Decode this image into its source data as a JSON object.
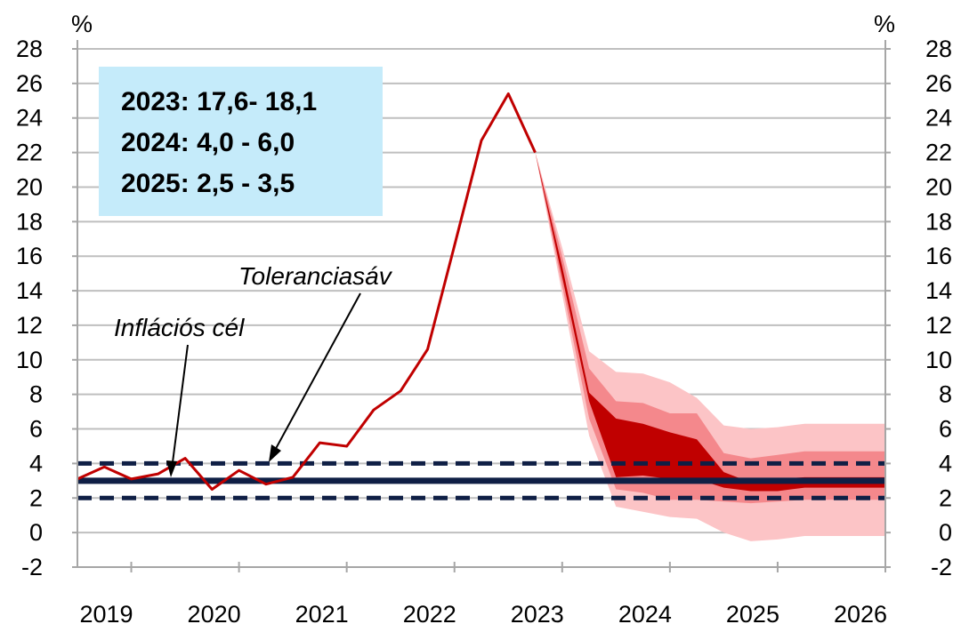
{
  "chart_data": {
    "type": "area",
    "y_unit_left": "%",
    "y_unit_right": "%",
    "ylim": [
      -2,
      28
    ],
    "y_ticks": [
      "28",
      "26",
      "24",
      "22",
      "20",
      "18",
      "16",
      "14",
      "12",
      "10",
      "8",
      "6",
      "4",
      "2",
      "0",
      "-2"
    ],
    "x_labels": [
      "2019",
      "2020",
      "2021",
      "2022",
      "2023",
      "2024",
      "2025",
      "2026"
    ],
    "xlim": [
      2019,
      2026.5
    ],
    "grid": true,
    "box_lines": [
      "2023: 17,6- 18,1",
      "2024: 4,0 - 6,0",
      "2025: 2,5 - 3,5"
    ],
    "annotations": {
      "tolerance_band": "Toleranciasáv",
      "inflation_target": "Inflációs cél"
    },
    "inflation_target": 3,
    "tolerance_band": [
      2,
      4
    ],
    "colors": {
      "line": "#c00000",
      "band_inner": "#c00000",
      "band_middle": "#f4888c",
      "band_outer": "#fcc4c6",
      "target": "#0f1f45",
      "box": "#c5ebfa"
    },
    "actual_series": {
      "x": [
        2019.0,
        2019.25,
        2019.5,
        2019.75,
        2020.0,
        2020.25,
        2020.5,
        2020.75,
        2021.0,
        2021.25,
        2021.5,
        2021.75,
        2022.0,
        2022.25,
        2022.5,
        2022.75,
        2023.0,
        2023.25
      ],
      "y": [
        3.1,
        3.8,
        3.1,
        3.4,
        4.3,
        2.5,
        3.6,
        2.8,
        3.2,
        5.2,
        5.0,
        7.1,
        8.2,
        10.6,
        16.6,
        22.7,
        25.4,
        22.0
      ]
    },
    "forecast_fan": {
      "x": [
        2023.25,
        2023.5,
        2023.75,
        2024.0,
        2024.25,
        2024.5,
        2024.75,
        2025.0,
        2025.25,
        2025.5,
        2025.75,
        2026.0,
        2026.25,
        2026.5
      ],
      "inner_upper": [
        22.0,
        15.4,
        8.1,
        6.6,
        6.3,
        5.8,
        5.4,
        3.5,
        2.9,
        3.1,
        3.2,
        3.2,
        3.2,
        3.2
      ],
      "inner_lower": [
        22.0,
        14.8,
        7.6,
        3.2,
        3.3,
        3.1,
        3.1,
        2.6,
        2.4,
        2.4,
        2.6,
        2.6,
        2.6,
        2.6
      ],
      "mid_upper": [
        22.0,
        16.0,
        9.5,
        7.6,
        7.5,
        6.9,
        6.9,
        4.6,
        4.3,
        4.5,
        4.7,
        4.7,
        4.7,
        4.7
      ],
      "mid_lower": [
        22.0,
        14.3,
        6.6,
        2.5,
        2.3,
        1.9,
        1.9,
        1.8,
        1.7,
        1.8,
        1.9,
        1.9,
        1.9,
        1.9
      ],
      "outer_upper": [
        22.0,
        16.5,
        10.5,
        9.3,
        9.2,
        8.7,
        7.8,
        6.2,
        6.0,
        6.1,
        6.3,
        6.3,
        6.3,
        6.3
      ],
      "outer_lower": [
        22.0,
        13.8,
        5.6,
        1.5,
        1.2,
        0.9,
        0.8,
        0.0,
        -0.5,
        -0.4,
        -0.2,
        -0.2,
        -0.2,
        -0.2
      ]
    }
  }
}
